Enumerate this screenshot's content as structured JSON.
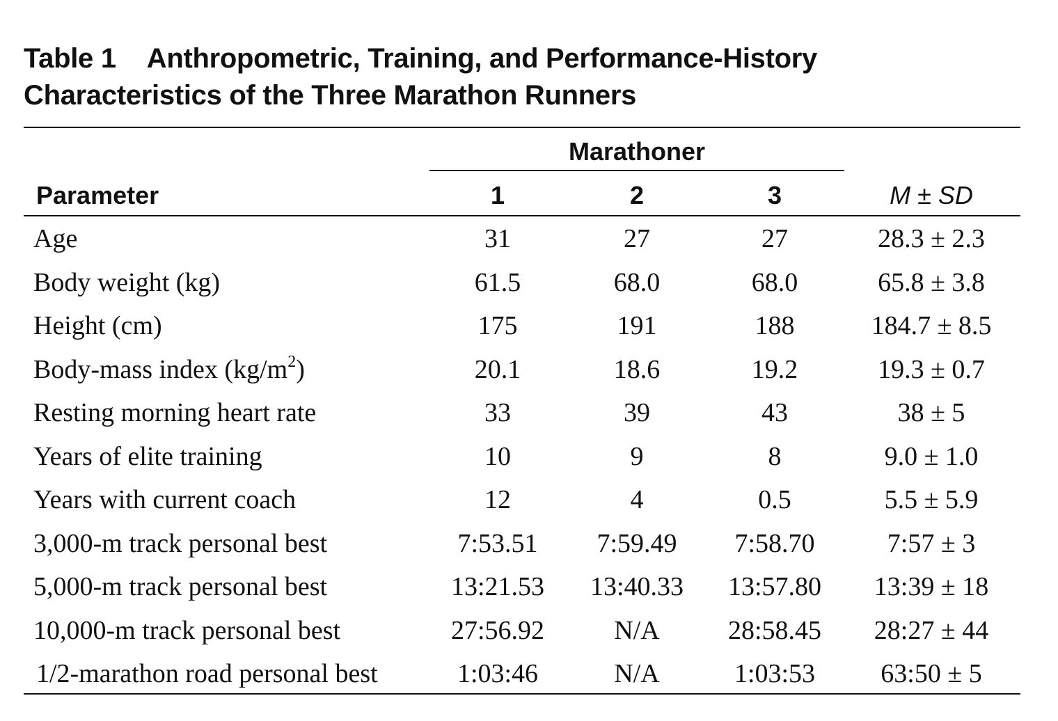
{
  "table": {
    "caption_label": "Table 1",
    "caption_line1": "Anthropometric, Training, and Performance-History",
    "caption_line2": "Characteristics of the Three Marathon Runners",
    "group_header": "Marathoner",
    "col_parameter": "Parameter",
    "col_1": "1",
    "col_2": "2",
    "col_3": "3",
    "col_msd_m": "M",
    "col_msd_pm": " ± ",
    "col_msd_sd": "SD",
    "rows": [
      {
        "parameter": "Age",
        "m1": "31",
        "m2": "27",
        "m3": "27",
        "msd": "28.3 ± 2.3"
      },
      {
        "parameter": "Body weight (kg)",
        "m1": "61.5",
        "m2": "68.0",
        "m3": "68.0",
        "msd": "65.8 ± 3.8"
      },
      {
        "parameter": "Height (cm)",
        "m1": "175",
        "m2": "191",
        "m3": "188",
        "msd": "184.7 ± 8.5"
      },
      {
        "parameter": "Body-mass index (kg/m",
        "parameter_sup": "2",
        "parameter_tail": ")",
        "m1": "20.1",
        "m2": "18.6",
        "m3": "19.2",
        "msd": "19.3 ± 0.7"
      },
      {
        "parameter": "Resting morning heart rate",
        "m1": "33",
        "m2": "39",
        "m3": "43",
        "msd": "38 ± 5"
      },
      {
        "parameter": "Years of elite training",
        "m1": "10",
        "m2": "9",
        "m3": "8",
        "msd": "9.0 ± 1.0"
      },
      {
        "parameter": "Years with current coach",
        "m1": "12",
        "m2": "4",
        "m3": "0.5",
        "msd": "5.5 ± 5.9"
      },
      {
        "parameter": "3,000-m track personal best",
        "m1": "7:53.51",
        "m2": "7:59.49",
        "m3": "7:58.70",
        "msd": "7:57 ± 3"
      },
      {
        "parameter": "5,000-m track personal best",
        "m1": "13:21.53",
        "m2": "13:40.33",
        "m3": "13:57.80",
        "msd": "13:39 ± 18"
      },
      {
        "parameter": "10,000-m track personal best",
        "m1": "27:56.92",
        "m2": "N/A",
        "m3": "28:58.45",
        "msd": "28:27 ± 44"
      },
      {
        "parameter": "1/2-marathon road personal best",
        "m1": "1:03:46",
        "m2": "N/A",
        "m3": "1:03:53",
        "msd": "63:50 ± 5"
      }
    ]
  }
}
